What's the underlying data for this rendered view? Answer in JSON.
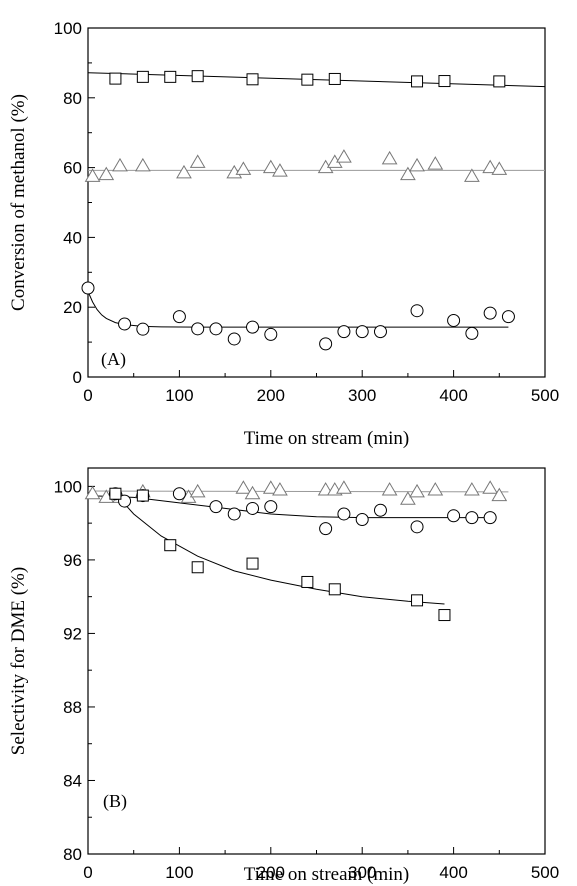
{
  "chart_data": [
    {
      "type": "scatter",
      "panel_label": "(A)",
      "xlabel": "Time on stream (min)",
      "ylabel": "Conversion of methanol (%)",
      "xlim": [
        0,
        500
      ],
      "ylim": [
        0,
        100
      ],
      "xticks": [
        0,
        100,
        200,
        300,
        400,
        500
      ],
      "yticks": [
        0,
        20,
        40,
        60,
        80,
        100
      ],
      "grid": false,
      "series": [
        {
          "marker": "square",
          "color": "#000000",
          "points": [
            [
              30,
              85.5
            ],
            [
              60,
              86
            ],
            [
              90,
              86
            ],
            [
              120,
              86.2
            ],
            [
              180,
              85.3
            ],
            [
              240,
              85.2
            ],
            [
              270,
              85.4
            ],
            [
              360,
              84.7
            ],
            [
              390,
              84.8
            ],
            [
              450,
              84.7
            ]
          ],
          "fit": [
            [
              0,
              87.2
            ],
            [
              500,
              83.2
            ]
          ],
          "fit_color": "#000000"
        },
        {
          "marker": "triangle",
          "color": "#777777",
          "points": [
            [
              5,
              57.5
            ],
            [
              20,
              58
            ],
            [
              35,
              60.5
            ],
            [
              60,
              60.5
            ],
            [
              105,
              58.5
            ],
            [
              120,
              61.5
            ],
            [
              160,
              58.5
            ],
            [
              170,
              59.5
            ],
            [
              200,
              60
            ],
            [
              210,
              59
            ],
            [
              260,
              60
            ],
            [
              270,
              61.5
            ],
            [
              280,
              63
            ],
            [
              330,
              62.5
            ],
            [
              350,
              58
            ],
            [
              360,
              60.5
            ],
            [
              380,
              61
            ],
            [
              420,
              57.5
            ],
            [
              440,
              60
            ],
            [
              450,
              59.5
            ]
          ],
          "fit": [
            [
              0,
              59.2
            ],
            [
              500,
              59.2
            ]
          ],
          "fit_color": "#999999"
        },
        {
          "marker": "circle",
          "color": "#000000",
          "points": [
            [
              0,
              25.5
            ],
            [
              40,
              15.2
            ],
            [
              60,
              13.7
            ],
            [
              100,
              17.3
            ],
            [
              120,
              13.8
            ],
            [
              140,
              13.8
            ],
            [
              160,
              10.9
            ],
            [
              180,
              14.3
            ],
            [
              200,
              12.2
            ],
            [
              260,
              9.5
            ],
            [
              280,
              13
            ],
            [
              300,
              13
            ],
            [
              320,
              13
            ],
            [
              360,
              19
            ],
            [
              400,
              16.2
            ],
            [
              420,
              12.5
            ],
            [
              440,
              18.3
            ],
            [
              460,
              17.3
            ]
          ],
          "fit": [
            [
              0,
              24.5
            ],
            [
              5,
              21.5
            ],
            [
              10,
              19.3
            ],
            [
              15,
              17.8
            ],
            [
              20,
              16.8
            ],
            [
              30,
              15.6
            ],
            [
              40,
              15
            ],
            [
              60,
              14.5
            ],
            [
              80,
              14.35
            ],
            [
              120,
              14.3
            ],
            [
              460,
              14.3
            ]
          ],
          "fit_color": "#000000"
        }
      ]
    },
    {
      "type": "scatter",
      "panel_label": "(B)",
      "xlabel": "Time on stream (min)",
      "ylabel": "Selectivity for DME (%)",
      "xlim": [
        0,
        500
      ],
      "ylim": [
        80,
        101
      ],
      "xticks": [
        0,
        100,
        200,
        300,
        400,
        500
      ],
      "yticks": [
        80,
        84,
        88,
        92,
        96,
        100
      ],
      "grid": false,
      "series": [
        {
          "marker": "triangle",
          "color": "#777777",
          "points": [
            [
              5,
              99.6
            ],
            [
              20,
              99.4
            ],
            [
              35,
              99.4
            ],
            [
              60,
              99.7
            ],
            [
              110,
              99.4
            ],
            [
              120,
              99.7
            ],
            [
              170,
              99.9
            ],
            [
              180,
              99.6
            ],
            [
              200,
              99.9
            ],
            [
              210,
              99.8
            ],
            [
              260,
              99.8
            ],
            [
              270,
              99.8
            ],
            [
              280,
              99.9
            ],
            [
              330,
              99.8
            ],
            [
              350,
              99.3
            ],
            [
              360,
              99.7
            ],
            [
              380,
              99.8
            ],
            [
              420,
              99.8
            ],
            [
              440,
              99.9
            ],
            [
              450,
              99.5
            ]
          ],
          "fit": [
            [
              0,
              99.75
            ],
            [
              460,
              99.7
            ]
          ],
          "fit_color": "#999999"
        },
        {
          "marker": "circle",
          "color": "#000000",
          "points": [
            [
              30,
              99.6
            ],
            [
              40,
              99.2
            ],
            [
              60,
              99.5
            ],
            [
              100,
              99.6
            ],
            [
              140,
              98.9
            ],
            [
              160,
              98.5
            ],
            [
              180,
              98.8
            ],
            [
              200,
              98.9
            ],
            [
              260,
              97.7
            ],
            [
              280,
              98.5
            ],
            [
              300,
              98.2
            ],
            [
              320,
              98.7
            ],
            [
              360,
              97.8
            ],
            [
              400,
              98.4
            ],
            [
              420,
              98.3
            ],
            [
              440,
              98.3
            ]
          ],
          "fit": [
            [
              0,
              99.5
            ],
            [
              50,
              99.4
            ],
            [
              100,
              99.1
            ],
            [
              150,
              98.8
            ],
            [
              200,
              98.5
            ],
            [
              250,
              98.35
            ],
            [
              300,
              98.3
            ],
            [
              350,
              98.3
            ],
            [
              440,
              98.3
            ]
          ],
          "fit_color": "#000000"
        },
        {
          "marker": "square",
          "color": "#000000",
          "points": [
            [
              30,
              99.6
            ],
            [
              60,
              99.5
            ],
            [
              90,
              96.8
            ],
            [
              120,
              95.6
            ],
            [
              180,
              95.8
            ],
            [
              240,
              94.8
            ],
            [
              270,
              94.4
            ],
            [
              360,
              93.8
            ],
            [
              390,
              93
            ]
          ],
          "fit": [
            [
              30,
              99.6
            ],
            [
              50,
              98.5
            ],
            [
              80,
              97.3
            ],
            [
              120,
              96.2
            ],
            [
              160,
              95.4
            ],
            [
              200,
              94.9
            ],
            [
              250,
              94.4
            ],
            [
              300,
              94
            ],
            [
              350,
              93.75
            ],
            [
              390,
              93.6
            ]
          ],
          "fit_color": "#000000"
        }
      ]
    }
  ]
}
